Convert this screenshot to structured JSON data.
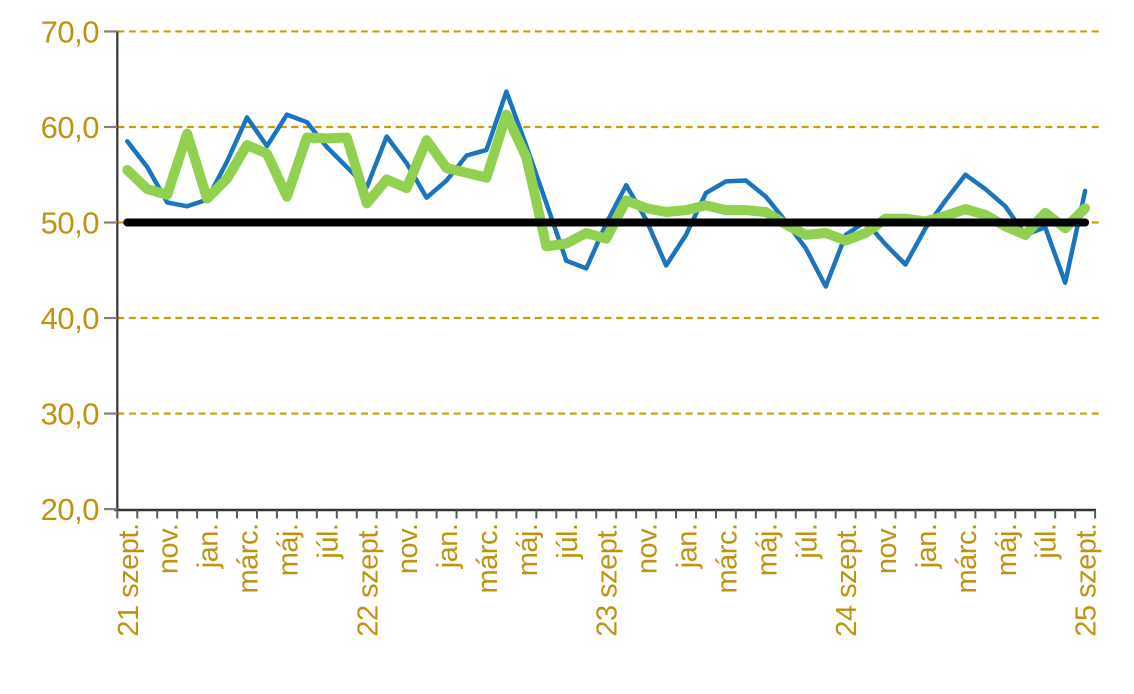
{
  "chart_data": {
    "type": "line",
    "title": "",
    "legend": "none",
    "n_points": 49,
    "x_axis": {
      "unit": "month",
      "first_point": "21 szept.",
      "last_point": "25 szept.",
      "label_every_n_months": 2,
      "tick_labels": [
        "21 szept.",
        "nov.",
        "jan.",
        "márc.",
        "máj.",
        "júl.",
        "22 szept.",
        "nov.",
        "jan.",
        "márc.",
        "máj.",
        "júl.",
        "23 szept.",
        "nov.",
        "jan.",
        "márc.",
        "máj.",
        "júl.",
        "24 szept.",
        "nov.",
        "jan.",
        "márc.",
        "máj.",
        "júl.",
        "25 szept."
      ]
    },
    "y_axis": {
      "min": 20,
      "max": 70,
      "step": 10,
      "tick_values": [
        70,
        60,
        50,
        40,
        30,
        20
      ],
      "tick_labels": [
        "70,0",
        "60,0",
        "50,0",
        "40,0",
        "30,0",
        "20,0"
      ]
    },
    "grid": {
      "style": "dashed",
      "color": "#CC9F00",
      "values": [
        30,
        40,
        50,
        60,
        70
      ]
    },
    "series": [
      {
        "id": "series-blue",
        "color": "#1B75BE",
        "stroke_width": 4.5,
        "values": [
          58.5,
          55.8,
          52.1,
          51.7,
          52.4,
          56.4,
          61.0,
          58.0,
          61.3,
          60.5,
          57.9,
          55.8,
          53.7,
          59.0,
          56.2,
          52.6,
          54.4,
          57.0,
          57.6,
          63.7,
          58.0,
          52.0,
          46.0,
          45.2,
          49.9,
          53.9,
          50.3,
          45.5,
          48.7,
          53.1,
          54.3,
          54.4,
          52.7,
          50.1,
          47.3,
          43.3,
          48.7,
          50.1,
          47.7,
          45.6,
          49.4,
          52.3,
          55.0,
          53.5,
          51.7,
          48.7,
          49.5,
          43.7,
          53.3
        ]
      },
      {
        "id": "series-green",
        "color": "#92D050",
        "stroke_width": 10,
        "values": [
          55.5,
          53.5,
          52.9,
          59.3,
          52.5,
          54.6,
          58.1,
          57.2,
          52.7,
          58.9,
          58.8,
          58.9,
          52.0,
          54.5,
          53.6,
          58.6,
          55.7,
          55.2,
          54.7,
          61.3,
          56.8,
          47.5,
          47.8,
          48.9,
          48.3,
          52.3,
          51.5,
          51.1,
          51.3,
          51.8,
          51.3,
          51.3,
          51.1,
          49.8,
          48.7,
          48.9,
          48.1,
          48.9,
          50.4,
          50.4,
          50.1,
          50.7,
          51.4,
          50.8,
          49.6,
          48.7,
          51.0,
          49.4,
          51.5
        ]
      },
      {
        "id": "reference-line-50",
        "color": "#000000",
        "stroke_width": 8,
        "constant": 50.0
      }
    ],
    "colors": {
      "axis_line": "#333333",
      "y_tick_mark": "#7F7F7F",
      "x_tick_mark": "#595959",
      "tick_label_text": "#BF9211",
      "gridline": "#CC9F00",
      "background": "#FFFFFF"
    }
  }
}
